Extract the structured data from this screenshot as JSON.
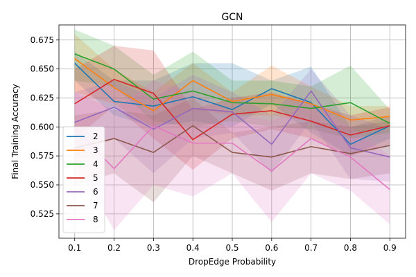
{
  "chart_data": {
    "type": "line",
    "title": "GCN",
    "xlabel": "DropEdge Probability",
    "ylabel": "Final Training Accuracy",
    "x": [
      0.1,
      0.2,
      0.3,
      0.4,
      0.5,
      0.6,
      0.7,
      0.8,
      0.9
    ],
    "xticks": [
      "0.1",
      "0.2",
      "0.3",
      "0.4",
      "0.5",
      "0.6",
      "0.7",
      "0.8",
      "0.9"
    ],
    "yticks": [
      "0.525",
      "0.550",
      "0.575",
      "0.600",
      "0.625",
      "0.650",
      "0.675"
    ],
    "xlim": [
      0.06,
      0.94
    ],
    "ylim": [
      0.504,
      0.688
    ],
    "grid": true,
    "legend_position": "lower-left",
    "series": [
      {
        "name": "2",
        "color": "#1f77b4",
        "values": [
          0.655,
          0.622,
          0.618,
          0.626,
          0.615,
          0.633,
          0.621,
          0.585,
          0.601
        ],
        "lower": [
          0.64,
          0.61,
          0.6,
          0.605,
          0.6,
          0.62,
          0.595,
          0.575,
          0.59
        ],
        "upper": [
          0.665,
          0.64,
          0.64,
          0.655,
          0.655,
          0.64,
          0.652,
          0.6,
          0.61
        ]
      },
      {
        "name": "3",
        "color": "#ff7f0e",
        "values": [
          0.659,
          0.634,
          0.614,
          0.64,
          0.622,
          0.628,
          0.62,
          0.606,
          0.609
        ],
        "lower": [
          0.63,
          0.62,
          0.6,
          0.615,
          0.61,
          0.61,
          0.605,
          0.595,
          0.6
        ],
        "upper": [
          0.68,
          0.65,
          0.63,
          0.655,
          0.63,
          0.653,
          0.635,
          0.618,
          0.618
        ]
      },
      {
        "name": "4",
        "color": "#2ca02c",
        "values": [
          0.663,
          0.65,
          0.624,
          0.631,
          0.621,
          0.62,
          0.616,
          0.621,
          0.603
        ],
        "lower": [
          0.64,
          0.635,
          0.605,
          0.6,
          0.605,
          0.6,
          0.598,
          0.59,
          0.595
        ],
        "upper": [
          0.684,
          0.67,
          0.645,
          0.665,
          0.64,
          0.64,
          0.635,
          0.653,
          0.615
        ]
      },
      {
        "name": "5",
        "color": "#d62728",
        "values": [
          0.62,
          0.641,
          0.629,
          0.589,
          0.611,
          0.614,
          0.605,
          0.593,
          0.601
        ],
        "lower": [
          0.59,
          0.618,
          0.59,
          0.563,
          0.59,
          0.598,
          0.59,
          0.575,
          0.585
        ],
        "upper": [
          0.65,
          0.67,
          0.666,
          0.615,
          0.625,
          0.63,
          0.62,
          0.61,
          0.617
        ]
      },
      {
        "name": "6",
        "color": "#9467bd",
        "values": [
          0.604,
          0.617,
          0.598,
          0.616,
          0.613,
          0.585,
          0.631,
          0.582,
          0.574
        ],
        "lower": [
          0.575,
          0.59,
          0.56,
          0.59,
          0.595,
          0.56,
          0.605,
          0.555,
          0.553
        ],
        "upper": [
          0.63,
          0.64,
          0.625,
          0.645,
          0.63,
          0.61,
          0.65,
          0.61,
          0.598
        ]
      },
      {
        "name": "7",
        "color": "#8c564b",
        "values": [
          0.582,
          0.59,
          0.578,
          0.601,
          0.578,
          0.574,
          0.583,
          0.577,
          0.584
        ],
        "lower": [
          0.55,
          0.56,
          0.535,
          0.575,
          0.56,
          0.545,
          0.56,
          0.555,
          0.56
        ],
        "upper": [
          0.61,
          0.615,
          0.61,
          0.625,
          0.595,
          0.6,
          0.605,
          0.6,
          0.605
        ]
      },
      {
        "name": "8",
        "color": "#e377c2",
        "values": [
          0.599,
          0.564,
          0.601,
          0.586,
          0.586,
          0.562,
          0.59,
          0.574,
          0.546
        ],
        "lower": [
          0.57,
          0.511,
          0.55,
          0.54,
          0.56,
          0.518,
          0.56,
          0.545,
          0.516
        ],
        "upper": [
          0.63,
          0.615,
          0.64,
          0.63,
          0.612,
          0.605,
          0.62,
          0.6,
          0.575
        ]
      }
    ]
  }
}
